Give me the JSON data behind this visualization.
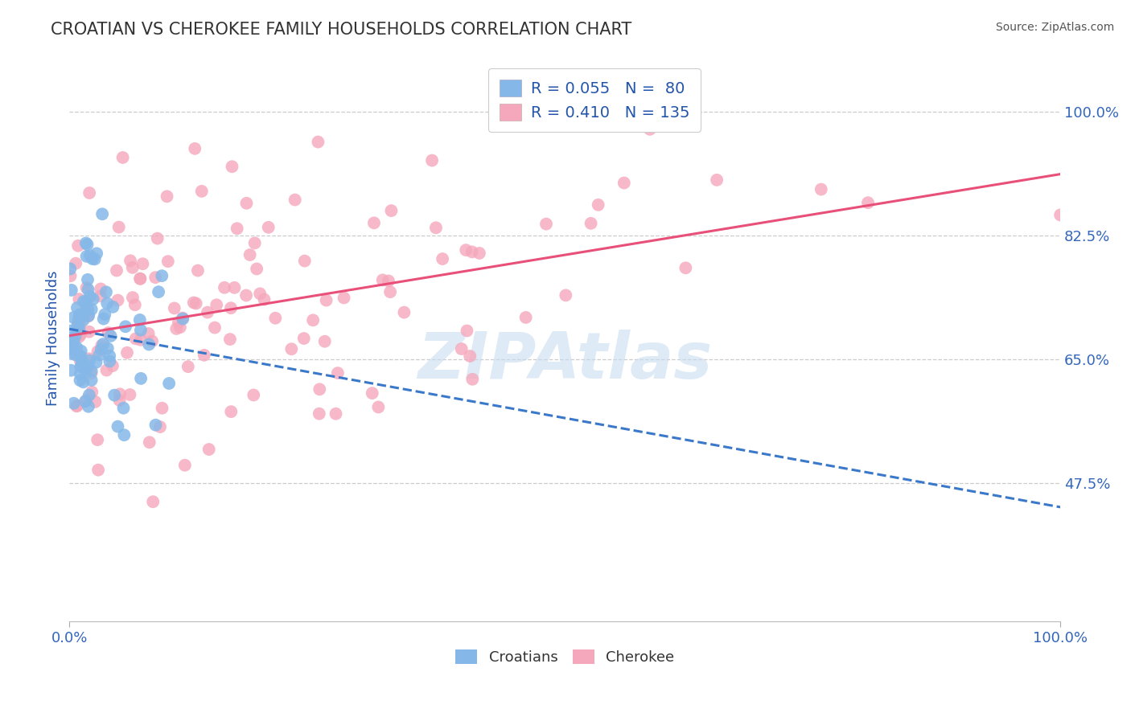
{
  "title": "CROATIAN VS CHEROKEE FAMILY HOUSEHOLDS CORRELATION CHART",
  "source": "Source: ZipAtlas.com",
  "ylabel": "Family Households",
  "yticks": [
    0.475,
    0.65,
    0.825,
    1.0
  ],
  "ytick_labels": [
    "47.5%",
    "65.0%",
    "82.5%",
    "100.0%"
  ],
  "xmin": 0.0,
  "xmax": 1.0,
  "ymin": 0.28,
  "ymax": 1.08,
  "croatian_R": 0.055,
  "croatian_N": 80,
  "cherokee_R": 0.41,
  "cherokee_N": 135,
  "croatian_color": "#85b8e8",
  "cherokee_color": "#f5a8bc",
  "croatian_line_color": "#3a78c9",
  "cherokee_line_color": "#e8507a",
  "legend_label_croatians": "Croatians",
  "legend_label_cherokee": "Cherokee",
  "watermark": "ZIPAtlas",
  "watermark_color": "#c8dcf0",
  "title_color": "#2255aa",
  "axis_label_color": "#2255aa",
  "tick_color": "#3366bb",
  "background_color": "#ffffff",
  "grid_color": "#cccccc",
  "legend_R_color": "#2255aa"
}
